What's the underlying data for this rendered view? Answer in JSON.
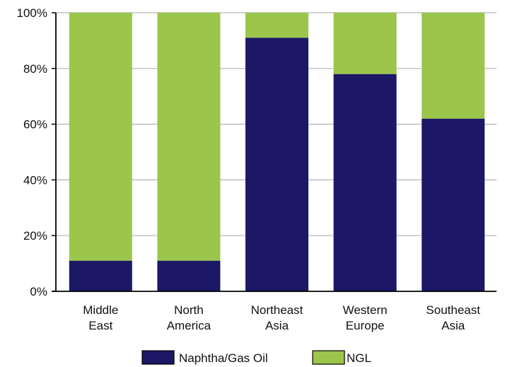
{
  "chart_data": {
    "type": "bar",
    "stacked": true,
    "categories": [
      [
        "Middle",
        "East"
      ],
      [
        "North",
        "America"
      ],
      [
        "Northeast",
        "Asia"
      ],
      [
        "Western",
        "Europe"
      ],
      [
        "Southeast",
        "Asia"
      ]
    ],
    "series": [
      {
        "name": "Naphtha/Gas Oil",
        "color": "#1c1866",
        "values": [
          11,
          11,
          91,
          78,
          62
        ]
      },
      {
        "name": "NGL",
        "color": "#9cc54b",
        "values": [
          89,
          89,
          9,
          22,
          38
        ]
      }
    ],
    "ylim": [
      0,
      100
    ],
    "yticks": [
      "0%",
      "20%",
      "40%",
      "60%",
      "80%",
      "100%"
    ],
    "grid": true,
    "legend_position": "bottom"
  }
}
